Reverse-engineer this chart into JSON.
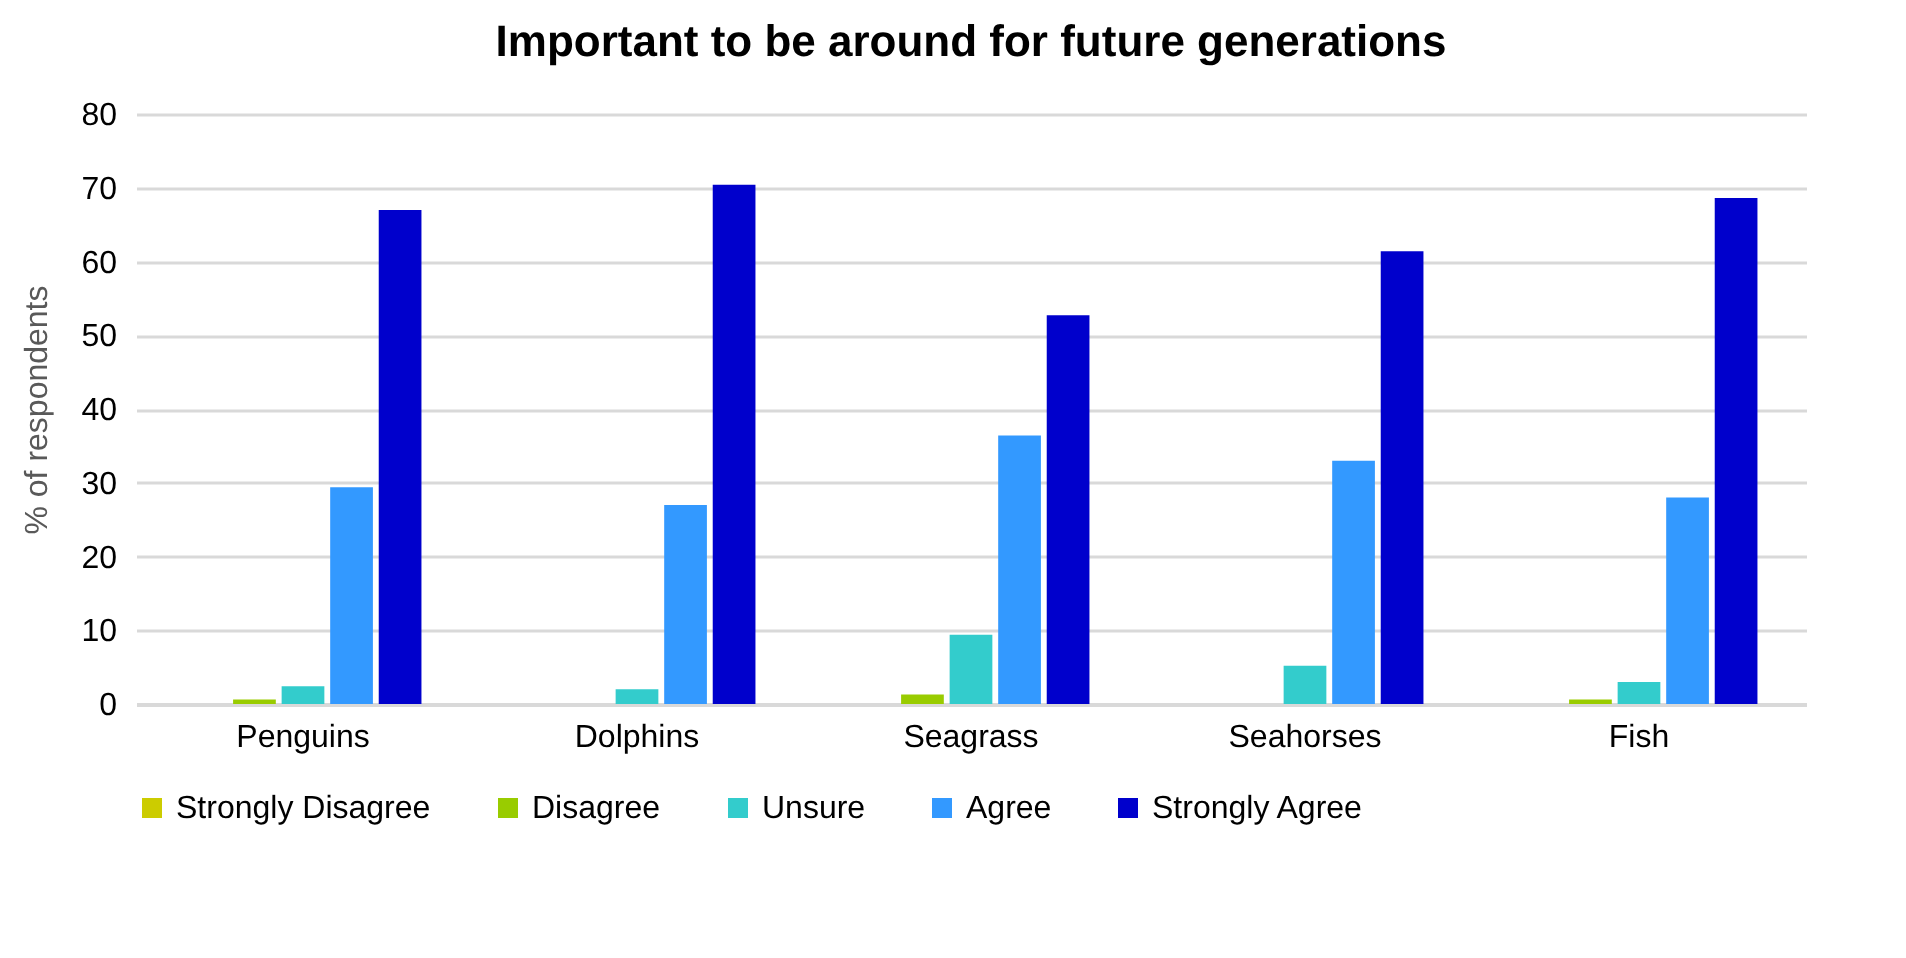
{
  "chart_data": {
    "type": "bar",
    "title": "Important to be around for future generations",
    "ylabel": "% of respondents",
    "categories": [
      "Penguins",
      "Dolphins",
      "Seagrass",
      "Seahorses",
      "Fish"
    ],
    "series": [
      {
        "name": "Strongly Disagree",
        "color": "#cccc00",
        "values": [
          0,
          0,
          0,
          0,
          0
        ]
      },
      {
        "name": "Disagree",
        "color": "#99cc00",
        "values": [
          0.6,
          0,
          1.3,
          0,
          0.6
        ]
      },
      {
        "name": "Unsure",
        "color": "#33cccc",
        "values": [
          2.4,
          2.0,
          9.4,
          5.2,
          3.0
        ]
      },
      {
        "name": "Agree",
        "color": "#3399ff",
        "values": [
          29.4,
          27,
          36.4,
          33,
          28
        ]
      },
      {
        "name": "Strongly Agree",
        "color": "#0000cc",
        "values": [
          67,
          70.4,
          52.7,
          61.4,
          68.6
        ]
      }
    ],
    "ylim": [
      0,
      80
    ],
    "yticks": [
      0,
      10,
      20,
      30,
      40,
      50,
      60,
      70,
      80
    ],
    "grid": "y",
    "legend": "bottom"
  }
}
